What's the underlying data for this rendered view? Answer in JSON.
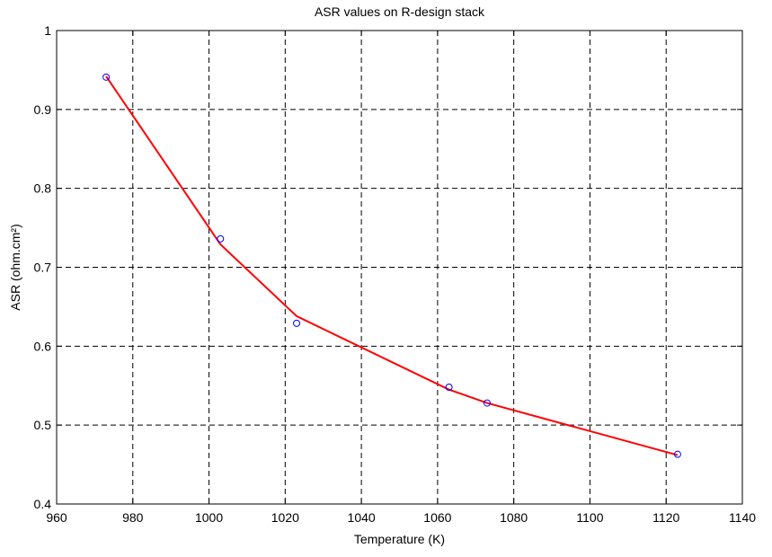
{
  "chart_data": {
    "type": "line",
    "title": "ASR values on R-design stack",
    "xlabel": "Temperature (K)",
    "ylabel": "ASR (ohm.cm²)",
    "xlim": [
      960,
      1140
    ],
    "ylim": [
      0.4,
      1.0
    ],
    "xticks": [
      960,
      980,
      1000,
      1020,
      1040,
      1060,
      1080,
      1100,
      1120,
      1140
    ],
    "yticks": [
      0.4,
      0.5,
      0.6,
      0.7,
      0.8,
      0.9,
      1.0
    ],
    "xtick_labels": [
      "960",
      "980",
      "1000",
      "1020",
      "1040",
      "1060",
      "1080",
      "1100",
      "1120",
      "1140"
    ],
    "ytick_labels": [
      "0.4",
      "0.5",
      "0.6",
      "0.7",
      "0.8",
      "0.9",
      "1"
    ],
    "grid": true,
    "grid_style": "dashed",
    "series": [
      {
        "style": "markers",
        "marker": "circle",
        "color": "#0000ff",
        "x": [
          973,
          1003,
          1023,
          1063,
          1073,
          1123
        ],
        "y": [
          0.941,
          0.736,
          0.629,
          0.548,
          0.528,
          0.463
        ]
      },
      {
        "style": "line",
        "color": "#ff0000",
        "x": [
          973,
          1003,
          1023,
          1063,
          1073,
          1123
        ],
        "y": [
          0.942,
          0.729,
          0.638,
          0.545,
          0.528,
          0.462
        ]
      }
    ]
  }
}
